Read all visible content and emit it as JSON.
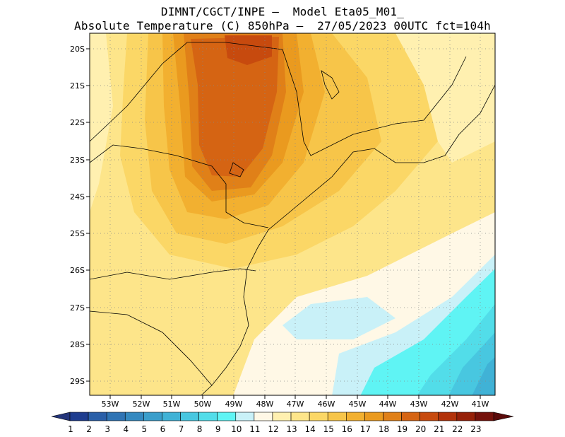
{
  "title": {
    "line1": "DIMNT/CGCT/INPE –  Model Eta05_M01_",
    "line2": "Absolute Temperature (C) 850hPa –  27/05/2023 00UTC fct=104h"
  },
  "map": {
    "lat_labels": [
      "20S",
      "21S",
      "22S",
      "23S",
      "24S",
      "25S",
      "26S",
      "27S",
      "28S",
      "29S"
    ],
    "lon_labels": [
      "53W",
      "52W",
      "51W",
      "50W",
      "49W",
      "48W",
      "47W",
      "46W",
      "45W",
      "44W",
      "43W",
      "42W",
      "41W"
    ],
    "gridlines": "dotted"
  },
  "colorbar": {
    "labels": [
      "1",
      "2",
      "3",
      "4",
      "5",
      "6",
      "7",
      "8",
      "9",
      "10",
      "11",
      "12",
      "13",
      "14",
      "15",
      "16",
      "17",
      "18",
      "19",
      "20",
      "21",
      "22",
      "23"
    ],
    "colors": [
      "#1e3d8f",
      "#2a5fa8",
      "#2f74b4",
      "#3489c0",
      "#3a9ecb",
      "#40b2d6",
      "#48c7e0",
      "#52dde9",
      "#5ff4f4",
      "#c9f1f8",
      "#fff8e6",
      "#fff0b0",
      "#fde58a",
      "#fbd766",
      "#f7c549",
      "#f2b030",
      "#ea9a1f",
      "#e08018",
      "#d56413",
      "#c74a0e",
      "#b2320a",
      "#962008",
      "#75110b"
    ],
    "arrow_low": "#23347a",
    "arrow_high": "#5a0a0a"
  }
}
